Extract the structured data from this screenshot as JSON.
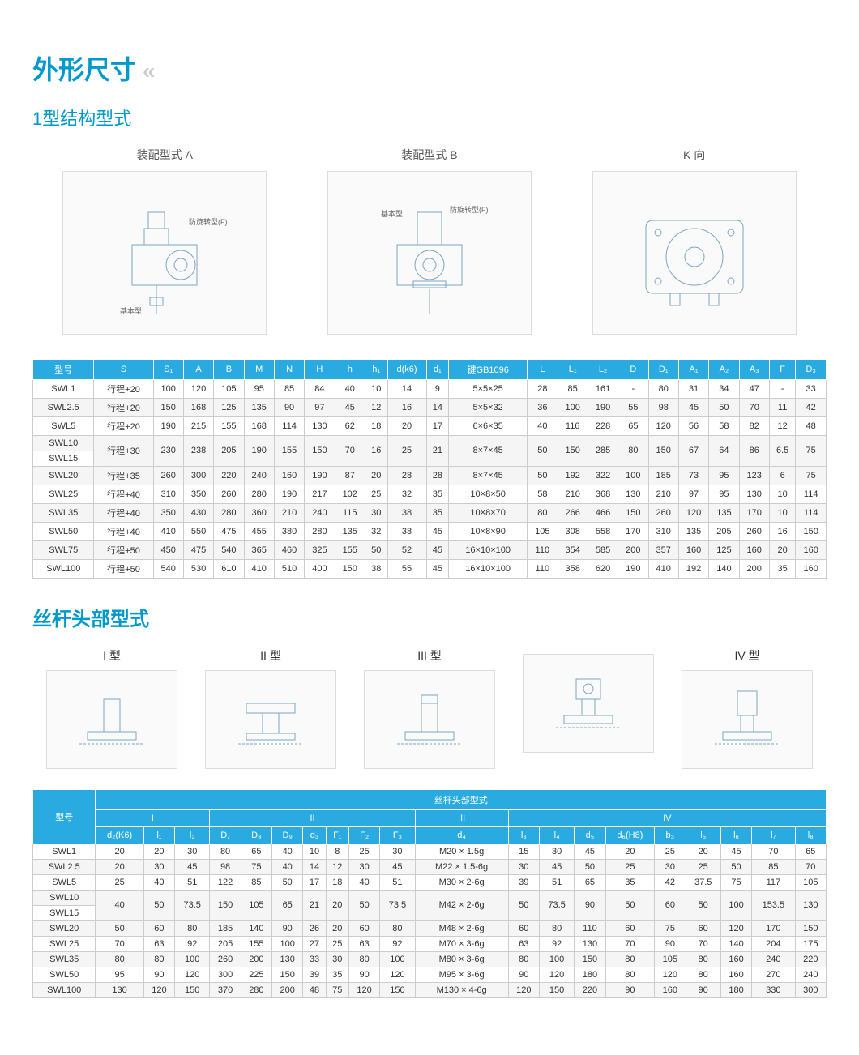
{
  "header": {
    "title": "外形尺寸",
    "subtitle": "1型结构型式"
  },
  "diagrams": {
    "a": "装配型式 A",
    "b": "装配型式 B",
    "k": "K 向",
    "labels": {
      "basic": "基本型",
      "anti": "防旋转型（F）"
    }
  },
  "table1": {
    "cols": [
      "型号",
      "S",
      "S₁",
      "A",
      "B",
      "M",
      "N",
      "H",
      "h",
      "h₁",
      "d(k6)",
      "d₁",
      "键GB1096",
      "L",
      "L₁",
      "L₂",
      "D",
      "D₁",
      "A₁",
      "A₂",
      "A₃",
      "F",
      "D₃"
    ],
    "rows": [
      [
        "SWL1",
        "行程+20",
        "100",
        "120",
        "105",
        "95",
        "85",
        "84",
        "40",
        "10",
        "14",
        "9",
        "5×5×25",
        "28",
        "85",
        "161",
        "-",
        "80",
        "31",
        "34",
        "47",
        "-",
        "33"
      ],
      [
        "SWL2.5",
        "行程+20",
        "150",
        "168",
        "125",
        "135",
        "90",
        "97",
        "45",
        "12",
        "16",
        "14",
        "5×5×32",
        "36",
        "100",
        "190",
        "55",
        "98",
        "45",
        "50",
        "70",
        "11",
        "42"
      ],
      [
        "SWL5",
        "行程+20",
        "190",
        "215",
        "155",
        "168",
        "114",
        "130",
        "62",
        "18",
        "20",
        "17",
        "6×6×35",
        "40",
        "116",
        "228",
        "65",
        "120",
        "56",
        "58",
        "82",
        "12",
        "48"
      ],
      [
        "SWL10",
        "行程+30",
        "230",
        "238",
        "205",
        "190",
        "155",
        "150",
        "70",
        "16",
        "25",
        "21",
        "8×7×45",
        "50",
        "150",
        "285",
        "80",
        "150",
        "67",
        "64",
        "86",
        "6.5",
        "75"
      ],
      [
        "SWL15",
        "行程+30",
        "230",
        "238",
        "205",
        "190",
        "155",
        "150",
        "70",
        "16",
        "25",
        "21",
        "8×7×45",
        "50",
        "150",
        "285",
        "80",
        "150",
        "67",
        "64",
        "86",
        "6.5",
        "75"
      ],
      [
        "SWL20",
        "行程+35",
        "260",
        "300",
        "220",
        "240",
        "160",
        "190",
        "87",
        "20",
        "28",
        "28",
        "8×7×45",
        "50",
        "192",
        "322",
        "100",
        "185",
        "73",
        "95",
        "123",
        "6",
        "75"
      ],
      [
        "SWL25",
        "行程+40",
        "310",
        "350",
        "260",
        "280",
        "190",
        "217",
        "102",
        "25",
        "32",
        "35",
        "10×8×50",
        "58",
        "210",
        "368",
        "130",
        "210",
        "97",
        "95",
        "130",
        "10",
        "114"
      ],
      [
        "SWL35",
        "行程+40",
        "350",
        "430",
        "280",
        "360",
        "210",
        "240",
        "115",
        "30",
        "38",
        "35",
        "10×8×70",
        "80",
        "266",
        "466",
        "150",
        "260",
        "120",
        "135",
        "170",
        "10",
        "114"
      ],
      [
        "SWL50",
        "行程+40",
        "410",
        "550",
        "475",
        "455",
        "380",
        "280",
        "135",
        "32",
        "38",
        "45",
        "10×8×90",
        "105",
        "308",
        "558",
        "170",
        "310",
        "135",
        "205",
        "260",
        "16",
        "150"
      ],
      [
        "SWL75",
        "行程+50",
        "450",
        "475",
        "540",
        "365",
        "460",
        "325",
        "155",
        "50",
        "52",
        "45",
        "16×10×100",
        "110",
        "354",
        "585",
        "200",
        "357",
        "160",
        "125",
        "160",
        "20",
        "160"
      ],
      [
        "SWL100",
        "行程+50",
        "540",
        "530",
        "610",
        "410",
        "510",
        "400",
        "150",
        "38",
        "55",
        "45",
        "16×10×100",
        "110",
        "358",
        "620",
        "190",
        "410",
        "192",
        "140",
        "200",
        "35",
        "160"
      ]
    ]
  },
  "section2": {
    "title": "丝杆头部型式",
    "types": [
      "I 型",
      "II 型",
      "III 型",
      "IV 型"
    ],
    "extra": "IV 型"
  },
  "table2": {
    "groupTitle": "丝杆头部型式",
    "groups": [
      "I",
      "II",
      "III",
      "IV"
    ],
    "cols": [
      "型号",
      "d₂(K6)",
      "l₁",
      "l₂",
      "D₇",
      "D₈",
      "D₉",
      "d₃",
      "F₁",
      "F₂",
      "F₃",
      "d₄",
      "l₃",
      "l₄",
      "d₅",
      "d₆(H8)",
      "b₃",
      "l₅",
      "l₆",
      "l₇",
      "l₈"
    ],
    "rows": [
      [
        "SWL1",
        "20",
        "20",
        "30",
        "80",
        "65",
        "40",
        "10",
        "8",
        "25",
        "30",
        "M20 × 1.5g",
        "15",
        "30",
        "45",
        "20",
        "25",
        "20",
        "45",
        "70",
        "65"
      ],
      [
        "SWL2.5",
        "20",
        "30",
        "45",
        "98",
        "75",
        "40",
        "14",
        "12",
        "30",
        "45",
        "M22 × 1.5-6g",
        "30",
        "45",
        "50",
        "25",
        "30",
        "25",
        "50",
        "85",
        "70"
      ],
      [
        "SWL5",
        "25",
        "40",
        "51",
        "122",
        "85",
        "50",
        "17",
        "18",
        "40",
        "51",
        "M30 × 2-6g",
        "39",
        "51",
        "65",
        "35",
        "42",
        "37.5",
        "75",
        "117",
        "105"
      ],
      [
        "SWL10",
        "40",
        "50",
        "73.5",
        "150",
        "105",
        "65",
        "21",
        "20",
        "50",
        "73.5",
        "M42 × 2-6g",
        "50",
        "73.5",
        "90",
        "50",
        "60",
        "50",
        "100",
        "153.5",
        "130"
      ],
      [
        "SWL15",
        "40",
        "50",
        "73.5",
        "150",
        "105",
        "65",
        "21",
        "20",
        "50",
        "73.5",
        "M42 × 2-6g",
        "50",
        "73.5",
        "90",
        "50",
        "60",
        "50",
        "100",
        "153.5",
        "130"
      ],
      [
        "SWL20",
        "50",
        "60",
        "80",
        "185",
        "140",
        "90",
        "26",
        "20",
        "60",
        "80",
        "M48 × 2-6g",
        "60",
        "80",
        "110",
        "60",
        "75",
        "60",
        "120",
        "170",
        "150"
      ],
      [
        "SWL25",
        "70",
        "63",
        "92",
        "205",
        "155",
        "100",
        "27",
        "25",
        "63",
        "92",
        "M70 × 3-6g",
        "63",
        "92",
        "130",
        "70",
        "90",
        "70",
        "140",
        "204",
        "175"
      ],
      [
        "SWL35",
        "80",
        "80",
        "100",
        "260",
        "200",
        "130",
        "33",
        "30",
        "80",
        "100",
        "M80 × 3-6g",
        "80",
        "100",
        "150",
        "80",
        "105",
        "80",
        "160",
        "240",
        "220"
      ],
      [
        "SWL50",
        "95",
        "90",
        "120",
        "300",
        "225",
        "150",
        "39",
        "35",
        "90",
        "120",
        "M95 × 3-6g",
        "90",
        "120",
        "180",
        "80",
        "120",
        "80",
        "160",
        "270",
        "240"
      ],
      [
        "SWL100",
        "130",
        "120",
        "150",
        "370",
        "280",
        "200",
        "48",
        "75",
        "120",
        "150",
        "M130 × 4-6g",
        "120",
        "150",
        "220",
        "90",
        "160",
        "90",
        "180",
        "330",
        "300"
      ]
    ]
  },
  "colors": {
    "headerBg": "#29abe2",
    "headerText": "#ffffff",
    "title": "#0099cc",
    "border": "#cccccc",
    "altRow": "#f5f5f5"
  }
}
